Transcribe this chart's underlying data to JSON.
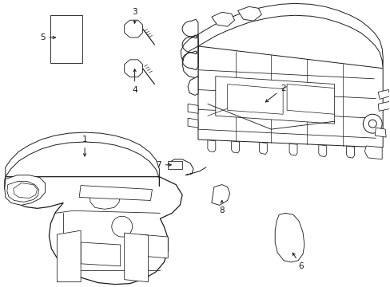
{
  "background_color": "#ffffff",
  "line_color": "#1a1a1a",
  "lw": 0.7,
  "fig_width": 4.89,
  "fig_height": 3.6,
  "dpi": 100,
  "font_size": 7.5
}
